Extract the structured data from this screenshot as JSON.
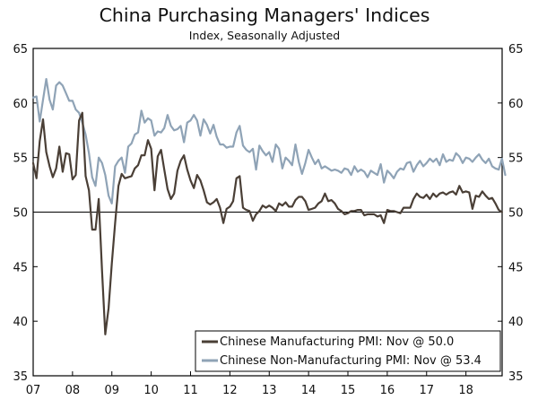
{
  "chart_data": {
    "type": "line",
    "title": "China Purchasing Managers' Indices",
    "subtitle": "Index, Seasonally Adjusted",
    "xlabel": "",
    "ylabel": "",
    "ylim": [
      35,
      65
    ],
    "xlim": [
      2007.0,
      2018.92
    ],
    "y_ticks": [
      35,
      40,
      45,
      50,
      55,
      60,
      65
    ],
    "x_ticks": [
      "07",
      "08",
      "09",
      "10",
      "11",
      "12",
      "13",
      "14",
      "15",
      "16",
      "17",
      "18"
    ],
    "x_tick_values": [
      2007,
      2008,
      2009,
      2010,
      2011,
      2012,
      2013,
      2014,
      2015,
      2016,
      2017,
      2018
    ],
    "reference_line": 50,
    "grid": false,
    "legend_position": "bottom-right",
    "series": [
      {
        "name": "Chinese Manufacturing PMI: Nov @ 50.0",
        "color": "#4a3f36",
        "x_start": 2007.0,
        "step": 0.08333,
        "values": [
          54.5,
          53.1,
          56.5,
          58.5,
          55.5,
          54.2,
          53.2,
          54.0,
          56.0,
          53.7,
          55.4,
          55.3,
          53.0,
          53.4,
          58.4,
          59.1,
          53.3,
          52.0,
          48.4,
          48.4,
          51.2,
          44.6,
          38.8,
          41.2,
          45.3,
          49.0,
          52.4,
          53.5,
          53.1,
          53.2,
          53.3,
          54.0,
          54.3,
          55.2,
          55.2,
          56.6,
          55.8,
          52.0,
          55.1,
          55.7,
          53.9,
          52.1,
          51.2,
          51.7,
          53.8,
          54.7,
          55.2,
          53.9,
          52.9,
          52.2,
          53.4,
          52.9,
          52.0,
          50.9,
          50.7,
          50.9,
          51.2,
          50.4,
          49.0,
          50.3,
          50.5,
          51.0,
          53.1,
          53.3,
          50.4,
          50.2,
          50.1,
          49.2,
          49.8,
          50.1,
          50.6,
          50.4,
          50.6,
          50.4,
          50.1,
          50.8,
          50.6,
          50.9,
          50.5,
          50.5,
          51.1,
          51.4,
          51.4,
          51.0,
          50.2,
          50.3,
          50.4,
          50.8,
          51.0,
          51.7,
          51.0,
          51.1,
          50.8,
          50.3,
          50.1,
          49.8,
          49.9,
          50.1,
          50.1,
          50.2,
          50.2,
          49.7,
          49.8,
          49.8,
          49.8,
          49.6,
          49.7,
          49.0,
          50.2,
          50.1,
          50.1,
          50.0,
          49.9,
          50.4,
          50.4,
          50.4,
          51.2,
          51.7,
          51.4,
          51.3,
          51.6,
          51.2,
          51.7,
          51.4,
          51.7,
          51.8,
          51.6,
          51.8,
          51.9,
          51.6,
          52.4,
          51.8,
          51.9,
          51.8,
          50.3,
          51.5,
          51.4,
          51.9,
          51.5,
          51.2,
          51.3,
          50.8,
          50.2,
          50.0
        ]
      },
      {
        "name": "Chinese Non-Manufacturing PMI: Nov @ 53.4",
        "color": "#8fa3b6",
        "x_start": 2007.0,
        "step": 0.08333,
        "values": [
          60.5,
          60.6,
          58.3,
          60.3,
          62.2,
          60.3,
          59.4,
          61.6,
          61.9,
          61.6,
          60.9,
          60.2,
          60.2,
          59.4,
          59.1,
          58.2,
          57.1,
          55.4,
          53.2,
          52.4,
          55.0,
          54.5,
          53.4,
          51.5,
          50.8,
          54.2,
          54.7,
          55.0,
          53.6,
          56.0,
          56.3,
          57.1,
          57.3,
          59.3,
          58.2,
          58.6,
          58.4,
          57.0,
          57.4,
          57.3,
          57.7,
          58.9,
          57.9,
          57.5,
          57.6,
          57.9,
          56.4,
          58.2,
          58.4,
          58.9,
          58.4,
          57.0,
          58.5,
          58.0,
          57.2,
          58.0,
          56.9,
          56.2,
          56.2,
          55.9,
          56.0,
          56.0,
          57.3,
          57.9,
          56.1,
          55.7,
          55.5,
          55.8,
          53.9,
          56.1,
          55.6,
          55.2,
          55.5,
          54.6,
          56.2,
          55.8,
          54.0,
          55.0,
          54.7,
          54.3,
          56.2,
          54.6,
          53.5,
          54.5,
          55.7,
          55.0,
          54.4,
          54.8,
          54.0,
          54.2,
          54.0,
          53.8,
          53.9,
          53.8,
          53.6,
          54.0,
          53.9,
          53.4,
          54.2,
          53.7,
          53.9,
          53.7,
          53.2,
          53.8,
          53.6,
          53.4,
          54.4,
          52.7,
          53.8,
          53.5,
          53.1,
          53.7,
          54.0,
          53.9,
          54.5,
          54.6,
          53.7,
          54.3,
          54.7,
          54.2,
          54.5,
          54.9,
          54.6,
          54.9,
          54.3,
          55.3,
          54.6,
          54.8,
          54.7,
          55.4,
          55.1,
          54.5,
          55.0,
          54.9,
          54.6,
          55.0,
          55.3,
          54.8,
          54.5,
          54.9,
          54.2,
          54.0,
          53.9,
          54.9,
          53.4
        ]
      }
    ]
  }
}
